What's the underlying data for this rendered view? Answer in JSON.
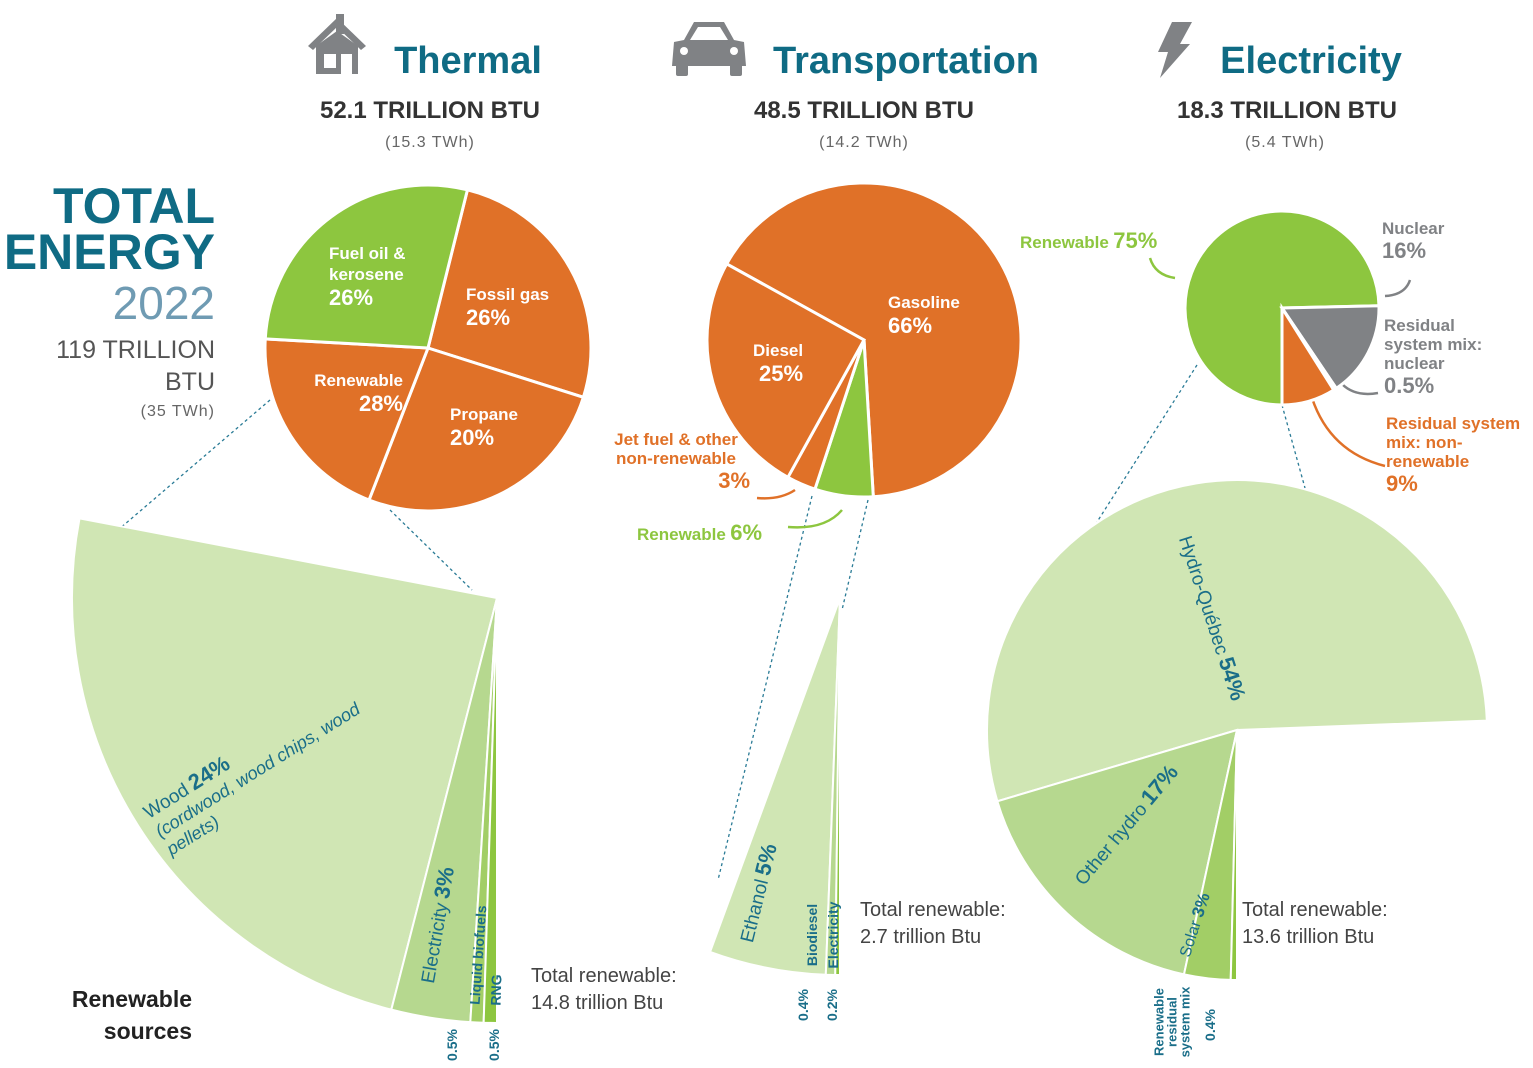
{
  "header": {
    "title": "TOTAL ENERGY",
    "year": "2022",
    "total": "119 TRILLION BTU",
    "total_twh": "(35 TWh)",
    "renewable_sources": "Renewable sources"
  },
  "chart_data": [
    {
      "type": "pie",
      "title": "Thermal",
      "subtitle": "52.1 TRILLION BTU",
      "note": "(15.3 TWh)",
      "categories": [
        "Fuel oil & kerosene",
        "Fossil gas",
        "Propane",
        "Renewable"
      ],
      "values": [
        26,
        26,
        20,
        28
      ],
      "value_labels": [
        "26%",
        "26%",
        "20%",
        "28%"
      ],
      "colors": [
        "#e07128",
        "#e07128",
        "#e07128",
        "#8dc63f"
      ]
    },
    {
      "type": "pie",
      "title": "Transportation",
      "subtitle": "48.5 TRILLION BTU",
      "note": "(14.2 TWh)",
      "categories": [
        "Gasoline",
        "Renewable",
        "Jet fuel & other non-renewable",
        "Diesel"
      ],
      "values": [
        66,
        6,
        3,
        25
      ],
      "value_labels": [
        "66%",
        "6%",
        "3%",
        "25%"
      ],
      "colors": [
        "#e07128",
        "#8dc63f",
        "#e07128",
        "#e07128"
      ]
    },
    {
      "type": "pie",
      "title": "Electricity",
      "subtitle": "18.3 TRILLION BTU",
      "note": "(5.4 TWh)",
      "categories": [
        "Renewable",
        "Nuclear",
        "Residual system mix: nuclear",
        "Residual system mix: non-renewable"
      ],
      "values": [
        75,
        16,
        0.5,
        9
      ],
      "value_labels": [
        "75%",
        "16%",
        "0.5%",
        "9%"
      ],
      "colors": [
        "#8dc63f",
        "#808285",
        "#808285",
        "#e07128"
      ]
    },
    {
      "type": "fan",
      "categories": [
        "Wood",
        "Electricity",
        "Liquid biofuels",
        "RNG"
      ],
      "values": [
        24,
        3,
        0.5,
        0.5
      ],
      "value_labels": [
        "24%",
        "3%",
        "0.5%",
        "0.5%"
      ],
      "colors": [
        "#d0e6b4",
        "#b6d88f",
        "#a2ce66",
        "#8dc63f"
      ],
      "annotation": "(cordwood, wood chips, wood pellets)",
      "total_label": "Total renewable: 14.8 trillion Btu"
    },
    {
      "type": "fan",
      "categories": [
        "Ethanol",
        "Biodiesel",
        "Electricity"
      ],
      "values": [
        5,
        0.4,
        0.2
      ],
      "value_labels": [
        "5%",
        "0.4%",
        "0.2%"
      ],
      "colors": [
        "#d0e6b4",
        "#b6d88f",
        "#8dc63f"
      ],
      "total_label": "Total renewable: 2.7 trillion Btu"
    },
    {
      "type": "fan",
      "categories": [
        "Hydro-Québec",
        "Other hydro",
        "Solar",
        "Renewable residual system mix"
      ],
      "values": [
        54,
        17,
        3,
        0.4
      ],
      "value_labels": [
        "54%",
        "17%",
        "3%",
        "0.4%"
      ],
      "colors": [
        "#d0e6b4",
        "#b6d88f",
        "#a2ce66",
        "#8dc63f"
      ],
      "total_label": "Total renewable: 13.6 trillion Btu"
    }
  ]
}
